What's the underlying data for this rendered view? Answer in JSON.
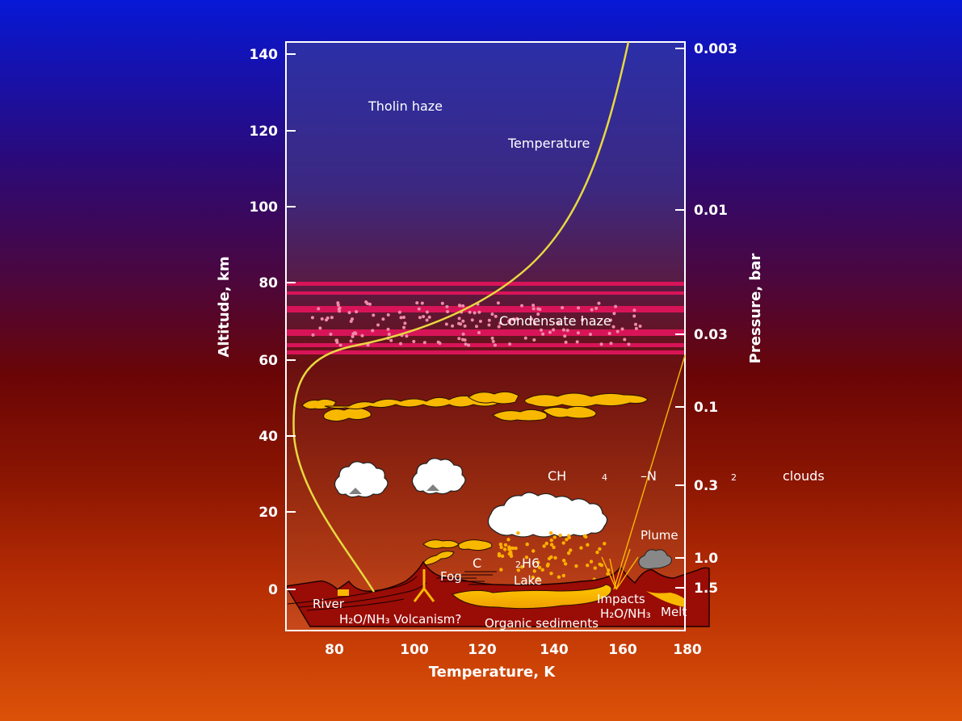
{
  "colors": {
    "temperature_curve": "#e8d840",
    "haze_band": "#d81458",
    "haze_dots": "#f08aa8",
    "methane_cloud": "#f5b800",
    "lake": "#f8b800",
    "surface": "#9a0c06"
  },
  "axes": {
    "x_title": "Temperature, K",
    "x_ticks": [
      "80",
      "100",
      "120",
      "140",
      "160",
      "180"
    ],
    "y_left_title": "Altitude, km",
    "y_left_ticks": [
      "140",
      "120",
      "100",
      "80",
      "60",
      "40",
      "20",
      "0"
    ],
    "y_right_title": "Pressure, bar",
    "y_right_ticks": [
      "0.003",
      "0.01",
      "0.03",
      "0.1",
      "0.3",
      "1.0",
      "1.5"
    ]
  },
  "labels": {
    "tholin_haze": "Tholin haze",
    "temperature": "Temperature",
    "condensate_haze": "Condensate haze",
    "ch4_n2_ch": "CH",
    "ch4_n2_4": "4",
    "ch4_n2_n": "–N",
    "ch4_n2_2": "2",
    "ch4_n2_clouds": "clouds",
    "plume": "Plume",
    "fog": "Fog",
    "c2h6_c": "C",
    "c2h6_2": "2",
    "c2h6_h6": "H6",
    "lake": "Lake",
    "river": "River",
    "volcanism": "H₂O/NH₃ Volcanism?",
    "impacts": "Impacts",
    "impacts_h2o": "H₂O/NH₃",
    "melt": "Melt",
    "organic_sediments": "Organic sediments"
  }
}
